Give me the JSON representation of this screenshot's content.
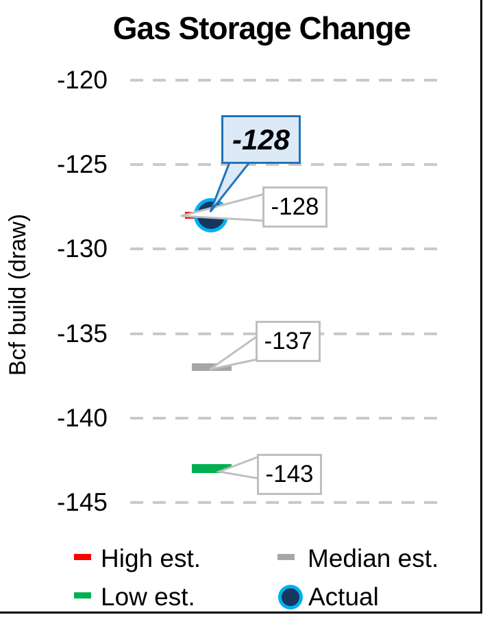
{
  "title": "Gas Storage Change",
  "y_axis": {
    "label": "Bcf build (draw)"
  },
  "colors": {
    "gridline": "#C9C9C9",
    "callout_fill": "#DCE9F6",
    "callout_border": "#2173B9",
    "label_box_border": "#BFBFBF",
    "high": "#FF0000",
    "median": "#A6A6A6",
    "low": "#00B050",
    "actual_fill": "#17375E",
    "actual_ring": "#00B0F0"
  },
  "chart_data": {
    "type": "scatter",
    "title": "Gas Storage Change",
    "ylabel": "Bcf build (draw)",
    "ylim": [
      -145,
      -120
    ],
    "yticks": [
      -120,
      -125,
      -130,
      -135,
      -140,
      -145
    ],
    "grid": "horizontal dashed gray lines at each tick",
    "legend_position": "bottom, 2 rows x 2 columns",
    "series": [
      {
        "key": "high",
        "name": "High est.",
        "marker": "dash",
        "color": "#FF0000",
        "value": -128
      },
      {
        "key": "median",
        "name": "Median est.",
        "marker": "dash",
        "color": "#A6A6A6",
        "value": -137,
        "label": "-137"
      },
      {
        "key": "low",
        "name": "Low est.",
        "marker": "dash",
        "color": "#00B050",
        "value": -143,
        "label": "-143"
      },
      {
        "key": "actual",
        "name": "Actual",
        "marker": "circle",
        "color": "#17375E",
        "value": -128,
        "label": "-128"
      }
    ],
    "callout": {
      "text": "-128",
      "points_to": "Actual",
      "style": "blue speech-bubble, bold italic"
    }
  }
}
